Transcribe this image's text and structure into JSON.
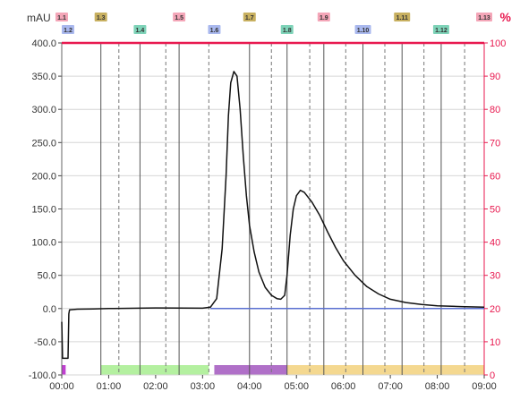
{
  "chart_data": {
    "type": "line",
    "left_axis": {
      "unit_label": "mAU",
      "ylim": [
        -100,
        400
      ],
      "ticks": [
        "400.0",
        "350.0",
        "300.0",
        "250.0",
        "200.0",
        "150.0",
        "100.0",
        "50.0",
        "0.0",
        "-50.0",
        "-100.0"
      ],
      "tick_values": [
        400,
        350,
        300,
        250,
        200,
        150,
        100,
        50,
        0,
        -50,
        -100
      ]
    },
    "right_axis": {
      "unit_label": "%",
      "ylim": [
        0,
        100
      ],
      "ticks": [
        "100",
        "90",
        "80",
        "70",
        "60",
        "50",
        "40",
        "30",
        "20",
        "10",
        "0"
      ],
      "tick_values": [
        100,
        90,
        80,
        70,
        60,
        50,
        40,
        30,
        20,
        10,
        0
      ]
    },
    "x_axis": {
      "xlim": [
        "00:00",
        "09:00"
      ],
      "ticks": [
        "00:00",
        "01:00",
        "02:00",
        "03:00",
        "04:00",
        "05:00",
        "06:00",
        "07:00",
        "08:00",
        "09:00"
      ]
    },
    "grid": true,
    "fractions": [
      {
        "label": "1.1",
        "time": "00:00",
        "color": "#f4a6b8"
      },
      {
        "label": "1.2",
        "time": "00:08",
        "color": "#a9b8ee"
      },
      {
        "label": "1.3",
        "time": "00:50",
        "color": "#c8b060"
      },
      {
        "label": "1.4",
        "time": "01:40",
        "color": "#7ed3b8"
      },
      {
        "label": "1.5",
        "time": "02:30",
        "color": "#f4a6b8"
      },
      {
        "label": "1.6",
        "time": "03:15",
        "color": "#a9b8ee"
      },
      {
        "label": "1.7",
        "time": "04:00",
        "color": "#c8b060"
      },
      {
        "label": "1.8",
        "time": "04:48",
        "color": "#7ed3b8"
      },
      {
        "label": "1.9",
        "time": "05:35",
        "color": "#f4a6b8"
      },
      {
        "label": "1.10",
        "time": "06:25",
        "color": "#a9b8ee"
      },
      {
        "label": "1.11",
        "time": "07:15",
        "color": "#c8b060"
      },
      {
        "label": "1.12",
        "time": "08:05",
        "color": "#7ed3b8"
      },
      {
        "label": "1.13",
        "time": "09:00",
        "color": "#f4a6b8"
      }
    ],
    "fraction_dividers_solid": [
      "00:50",
      "01:40",
      "02:30",
      "04:00",
      "04:48",
      "05:35",
      "06:25",
      "07:15",
      "08:05"
    ],
    "fraction_dividers_dashed": [
      "01:13",
      "02:13",
      "03:08",
      "04:28",
      "05:17",
      "06:03",
      "06:53",
      "07:43",
      "08:35"
    ],
    "series": [
      {
        "role": "absorbance",
        "axis": "left",
        "color": "#111111",
        "points": [
          [
            "00:00",
            -20
          ],
          [
            "00:01",
            -75
          ],
          [
            "00:08",
            -75
          ],
          [
            "00:09",
            -8
          ],
          [
            "00:10",
            -2
          ],
          [
            "00:20",
            -1
          ],
          [
            "00:40",
            -0.5
          ],
          [
            "01:00",
            0
          ],
          [
            "02:00",
            1
          ],
          [
            "03:00",
            0.5
          ],
          [
            "03:10",
            2
          ],
          [
            "03:18",
            15
          ],
          [
            "03:25",
            90
          ],
          [
            "03:30",
            200
          ],
          [
            "03:33",
            290
          ],
          [
            "03:36",
            340
          ],
          [
            "03:40",
            357
          ],
          [
            "03:44",
            350
          ],
          [
            "03:48",
            300
          ],
          [
            "03:52",
            230
          ],
          [
            "03:56",
            170
          ],
          [
            "04:00",
            125
          ],
          [
            "04:06",
            85
          ],
          [
            "04:12",
            55
          ],
          [
            "04:20",
            32
          ],
          [
            "04:28",
            20
          ],
          [
            "04:35",
            15
          ],
          [
            "04:40",
            14
          ],
          [
            "04:45",
            20
          ],
          [
            "04:48",
            50
          ],
          [
            "04:52",
            110
          ],
          [
            "04:56",
            150
          ],
          [
            "05:00",
            170
          ],
          [
            "05:05",
            178
          ],
          [
            "05:10",
            175
          ],
          [
            "05:20",
            160
          ],
          [
            "05:30",
            140
          ],
          [
            "05:40",
            115
          ],
          [
            "05:50",
            92
          ],
          [
            "06:00",
            72
          ],
          [
            "06:15",
            50
          ],
          [
            "06:30",
            33
          ],
          [
            "06:45",
            22
          ],
          [
            "07:00",
            14
          ],
          [
            "07:20",
            9
          ],
          [
            "07:40",
            6
          ],
          [
            "08:00",
            4
          ],
          [
            "08:30",
            3
          ],
          [
            "09:00",
            2
          ]
        ]
      },
      {
        "role": "concentration_B",
        "axis": "right",
        "color": "#e8194f",
        "points": [
          [
            "00:00",
            100
          ],
          [
            "09:00",
            100
          ]
        ]
      },
      {
        "role": "baseline",
        "axis": "left",
        "color": "#5a6fd0",
        "points": [
          [
            "03:10",
            0
          ],
          [
            "09:00",
            0
          ]
        ]
      }
    ],
    "bottom_bands": [
      {
        "start": "00:00",
        "end": "00:05",
        "color": "#c040d0"
      },
      {
        "start": "00:50",
        "end": "03:08",
        "color": "#b4f0a0"
      },
      {
        "start": "03:15",
        "end": "04:48",
        "color": "#b070c8"
      },
      {
        "start": "04:48",
        "end": "09:00",
        "color": "#f4d890"
      }
    ]
  }
}
